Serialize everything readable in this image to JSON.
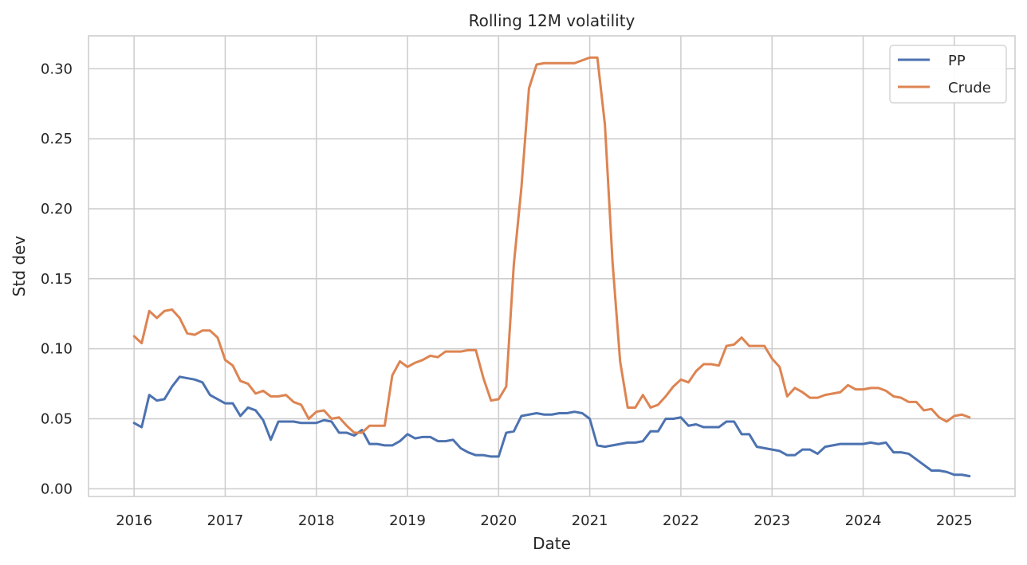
{
  "chart_data": {
    "type": "line",
    "title": "Rolling 12M volatility",
    "xlabel": "Date",
    "ylabel": "Std dev",
    "x_ticks": [
      "2016",
      "2017",
      "2018",
      "2019",
      "2020",
      "2021",
      "2022",
      "2023",
      "2024",
      "2025"
    ],
    "y_ticks": [
      "0.00",
      "0.05",
      "0.10",
      "0.15",
      "0.20",
      "0.25",
      "0.30"
    ],
    "xlim": [
      "2015-07",
      "2025-09"
    ],
    "ylim": [
      -0.0055,
      0.3235
    ],
    "grid": true,
    "legend_position": "top-right",
    "x": [
      "2016-01",
      "2016-02",
      "2016-03",
      "2016-04",
      "2016-05",
      "2016-06",
      "2016-07",
      "2016-08",
      "2016-09",
      "2016-10",
      "2016-11",
      "2016-12",
      "2017-01",
      "2017-02",
      "2017-03",
      "2017-04",
      "2017-05",
      "2017-06",
      "2017-07",
      "2017-08",
      "2017-09",
      "2017-10",
      "2017-11",
      "2017-12",
      "2018-01",
      "2018-02",
      "2018-03",
      "2018-04",
      "2018-05",
      "2018-06",
      "2018-07",
      "2018-08",
      "2018-09",
      "2018-10",
      "2018-11",
      "2018-12",
      "2019-01",
      "2019-02",
      "2019-03",
      "2019-04",
      "2019-05",
      "2019-06",
      "2019-07",
      "2019-08",
      "2019-09",
      "2019-10",
      "2019-11",
      "2019-12",
      "2020-01",
      "2020-02",
      "2020-03",
      "2020-04",
      "2020-05",
      "2020-06",
      "2020-07",
      "2020-08",
      "2020-09",
      "2020-10",
      "2020-11",
      "2020-12",
      "2021-01",
      "2021-02",
      "2021-03",
      "2021-04",
      "2021-05",
      "2021-06",
      "2021-07",
      "2021-08",
      "2021-09",
      "2021-10",
      "2021-11",
      "2021-12",
      "2022-01",
      "2022-02",
      "2022-03",
      "2022-04",
      "2022-05",
      "2022-06",
      "2022-07",
      "2022-08",
      "2022-09",
      "2022-10",
      "2022-11",
      "2022-12",
      "2023-01",
      "2023-02",
      "2023-03",
      "2023-04",
      "2023-05",
      "2023-06",
      "2023-07",
      "2023-08",
      "2023-09",
      "2023-10",
      "2023-11",
      "2023-12",
      "2024-01",
      "2024-02",
      "2024-03",
      "2024-04",
      "2024-05",
      "2024-06",
      "2024-07",
      "2024-08",
      "2024-09",
      "2024-10",
      "2024-11",
      "2024-12",
      "2025-01",
      "2025-02",
      "2025-03"
    ],
    "series": [
      {
        "name": "PP",
        "color": "#4c72b0",
        "values": [
          0.047,
          0.044,
          0.067,
          0.063,
          0.064,
          0.073,
          0.08,
          0.079,
          0.078,
          0.076,
          0.067,
          0.064,
          0.061,
          0.061,
          0.052,
          0.058,
          0.056,
          0.049,
          0.035,
          0.048,
          0.048,
          0.048,
          0.047,
          0.047,
          0.047,
          0.049,
          0.048,
          0.04,
          0.04,
          0.038,
          0.042,
          0.032,
          0.032,
          0.031,
          0.031,
          0.034,
          0.039,
          0.036,
          0.037,
          0.037,
          0.034,
          0.034,
          0.035,
          0.029,
          0.026,
          0.024,
          0.024,
          0.023,
          0.023,
          0.04,
          0.041,
          0.052,
          0.053,
          0.054,
          0.053,
          0.053,
          0.054,
          0.054,
          0.055,
          0.054,
          0.05,
          0.031,
          0.03,
          0.031,
          0.032,
          0.033,
          0.033,
          0.034,
          0.041,
          0.041,
          0.05,
          0.05,
          0.051,
          0.045,
          0.046,
          0.044,
          0.044,
          0.044,
          0.048,
          0.048,
          0.039,
          0.039,
          0.03,
          0.029,
          0.028,
          0.027,
          0.024,
          0.024,
          0.028,
          0.028,
          0.025,
          0.03,
          0.031,
          0.032,
          0.032,
          0.032,
          0.032,
          0.033,
          0.032,
          0.033,
          0.026,
          0.026,
          0.025,
          0.021,
          0.017,
          0.013,
          0.013,
          0.012,
          0.01,
          0.01,
          0.009
        ]
      },
      {
        "name": "Crude",
        "color": "#dd8452",
        "values": [
          0.109,
          0.104,
          0.127,
          0.122,
          0.127,
          0.128,
          0.122,
          0.111,
          0.11,
          0.113,
          0.113,
          0.108,
          0.092,
          0.088,
          0.077,
          0.075,
          0.068,
          0.07,
          0.066,
          0.066,
          0.067,
          0.062,
          0.06,
          0.05,
          0.055,
          0.056,
          0.05,
          0.051,
          0.045,
          0.04,
          0.04,
          0.045,
          0.045,
          0.045,
          0.081,
          0.091,
          0.087,
          0.09,
          0.092,
          0.095,
          0.094,
          0.098,
          0.098,
          0.098,
          0.099,
          0.099,
          0.079,
          0.063,
          0.064,
          0.073,
          0.16,
          0.215,
          0.286,
          0.303,
          0.304,
          0.304,
          0.304,
          0.304,
          0.304,
          0.306,
          0.308,
          0.308,
          0.26,
          0.162,
          0.091,
          0.058,
          0.058,
          0.067,
          0.058,
          0.06,
          0.066,
          0.073,
          0.078,
          0.076,
          0.084,
          0.089,
          0.089,
          0.088,
          0.102,
          0.103,
          0.108,
          0.102,
          0.102,
          0.102,
          0.093,
          0.087,
          0.066,
          0.072,
          0.069,
          0.065,
          0.065,
          0.067,
          0.068,
          0.069,
          0.074,
          0.071,
          0.071,
          0.072,
          0.072,
          0.07,
          0.066,
          0.065,
          0.062,
          0.062,
          0.056,
          0.057,
          0.051,
          0.048,
          0.052,
          0.053,
          0.051
        ]
      }
    ]
  }
}
